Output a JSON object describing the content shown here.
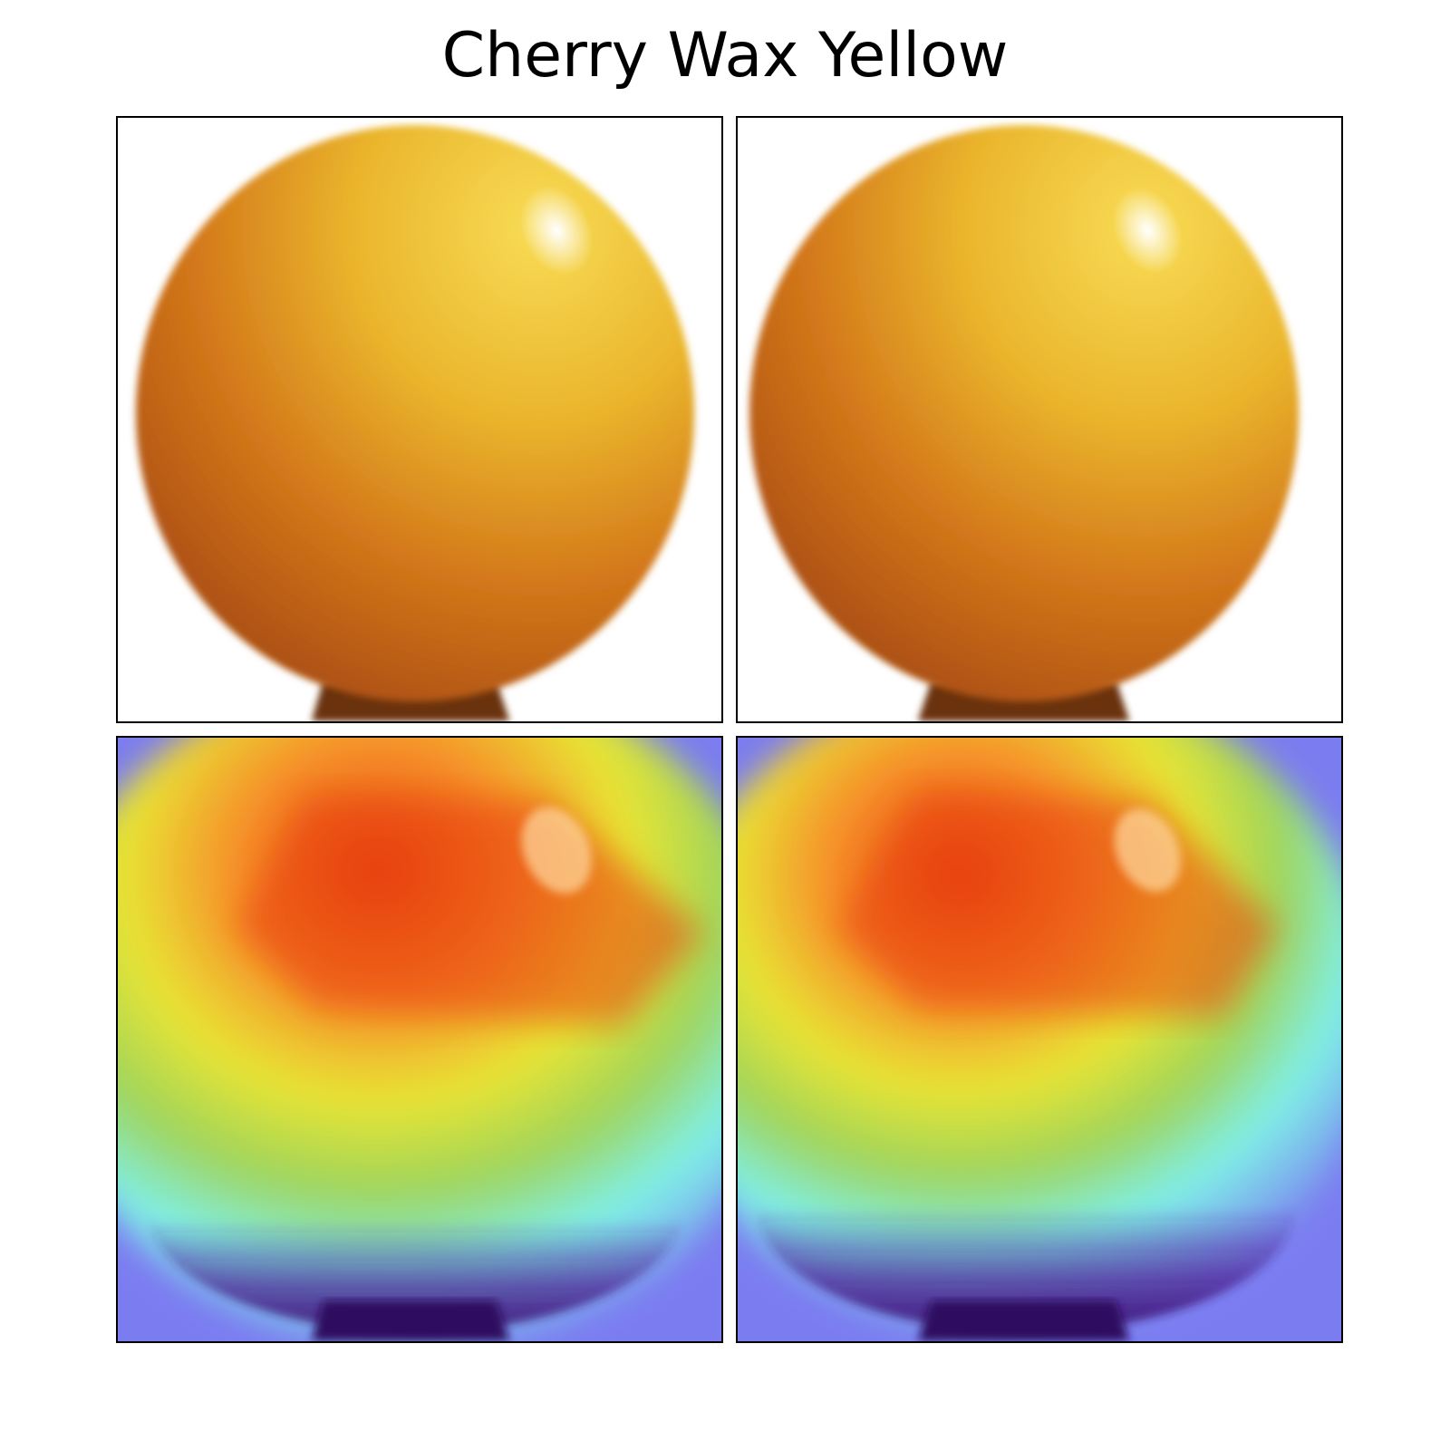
{
  "figure": {
    "title": "Cherry Wax Yellow"
  },
  "colors": {
    "background": "#ffffff",
    "fruit_light": "#f2c93a",
    "fruit_mid": "#d9901f",
    "fruit_dark": "#b24f12",
    "stem": "#6a3310",
    "highlight": "#ffffff",
    "heat_base": "#7b7cf0",
    "heat_cyan": "#7ff0e8",
    "heat_yellow": "#e8e534",
    "heat_orange": "#f6902a",
    "heat_red": "#e84010",
    "heat_purple": "#4b1f8c"
  },
  "panels": [
    {
      "name": "original-image-1",
      "kind": "photo"
    },
    {
      "name": "original-image-2",
      "kind": "photo"
    },
    {
      "name": "heatmap-overlay-1",
      "kind": "heatmap"
    },
    {
      "name": "heatmap-overlay-2",
      "kind": "heatmap"
    }
  ]
}
